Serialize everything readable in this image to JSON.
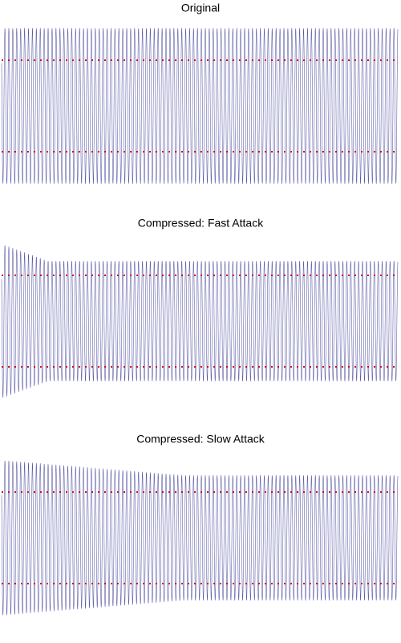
{
  "panels": [
    {
      "title": "Original"
    },
    {
      "title": "Compressed: Fast Attack"
    },
    {
      "title": "Compressed: Slow Attack"
    }
  ]
}
